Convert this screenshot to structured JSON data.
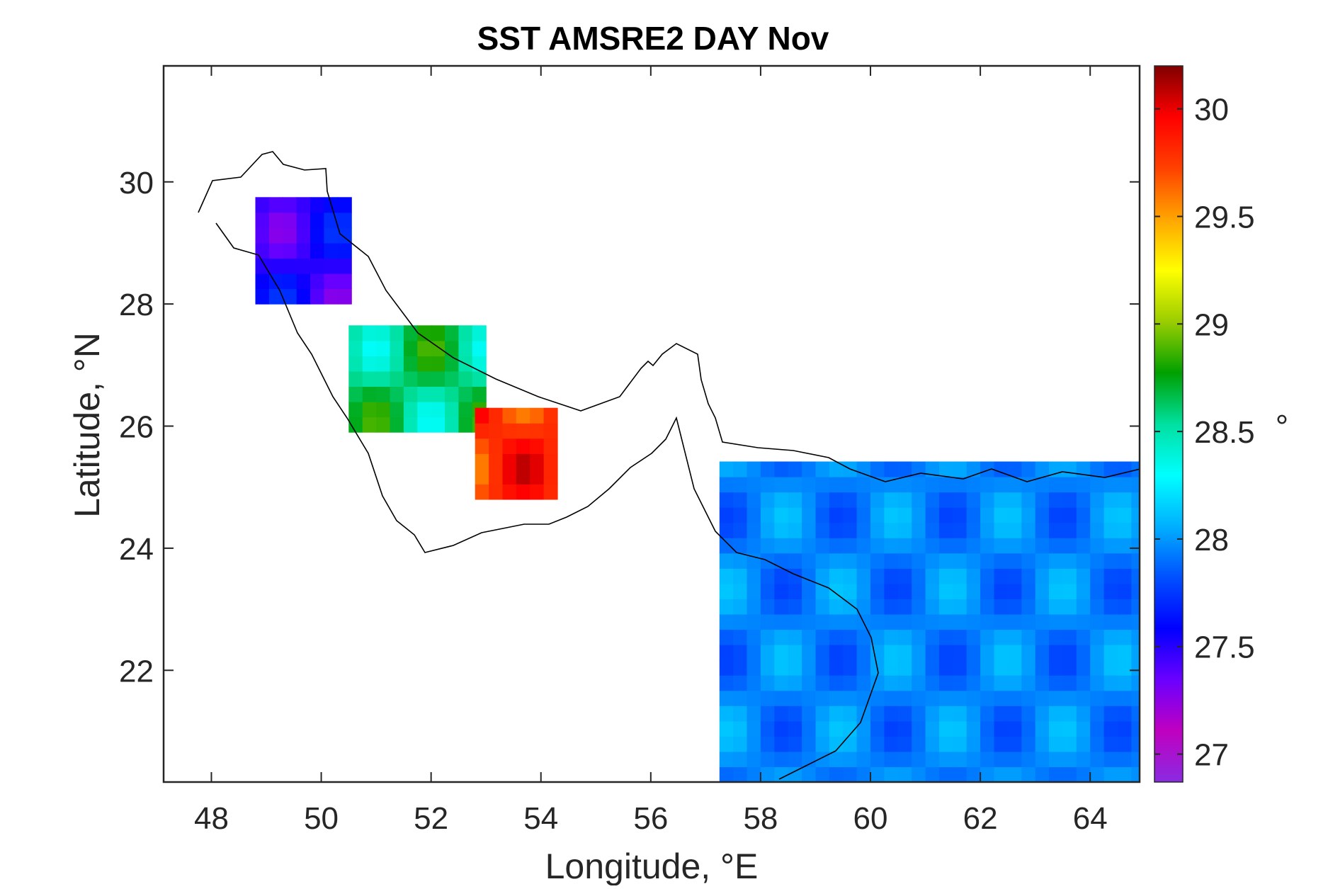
{
  "chart_data": {
    "type": "heatmap",
    "title": "SST AMSRE2 DAY Nov",
    "xlabel": "Longitude, °E",
    "ylabel": "Latitude, °N",
    "xlim": [
      47.13,
      64.9
    ],
    "ylim": [
      20.17,
      31.9
    ],
    "xticks": [
      48,
      50,
      52,
      54,
      56,
      58,
      60,
      62,
      64
    ],
    "yticks": [
      22,
      24,
      26,
      28,
      30
    ],
    "grid": false,
    "colorbar": {
      "label": "°",
      "range": [
        26.87,
        30.2
      ],
      "ticks": [
        27,
        27.5,
        28,
        28.5,
        29,
        29.5,
        30
      ],
      "colormap": [
        "#8a2be2",
        "#c000c0",
        "#6a00ff",
        "#0000ff",
        "#0050ff",
        "#00b0ff",
        "#00ffff",
        "#00e0a0",
        "#00a000",
        "#9acd00",
        "#ffff00",
        "#ffa500",
        "#ff4000",
        "#ff0000",
        "#800000"
      ]
    },
    "cell_size_deg": 0.25,
    "regions": [
      {
        "name": "",
        "lon_min": 48.8,
        "lon_max": 50.5,
        "lat_min": 28.0,
        "lat_max": 29.75,
        "base": 27.5,
        "amp": 0.25
      },
      {
        "name": "",
        "lon_min": 50.5,
        "lon_max": 52.8,
        "lat_min": 25.9,
        "lat_max": 27.6,
        "base": 28.6,
        "amp": 0.3
      },
      {
        "name": "",
        "lon_min": 52.8,
        "lon_max": 54.2,
        "lat_min": 24.8,
        "lat_max": 26.3,
        "base": 29.8,
        "amp": 0.3
      },
      {
        "name": "",
        "lon_min": 57.25,
        "lon_max": 64.9,
        "lat_min": 20.17,
        "lat_max": 25.25,
        "base": 27.95,
        "amp": 0.18
      }
    ]
  }
}
